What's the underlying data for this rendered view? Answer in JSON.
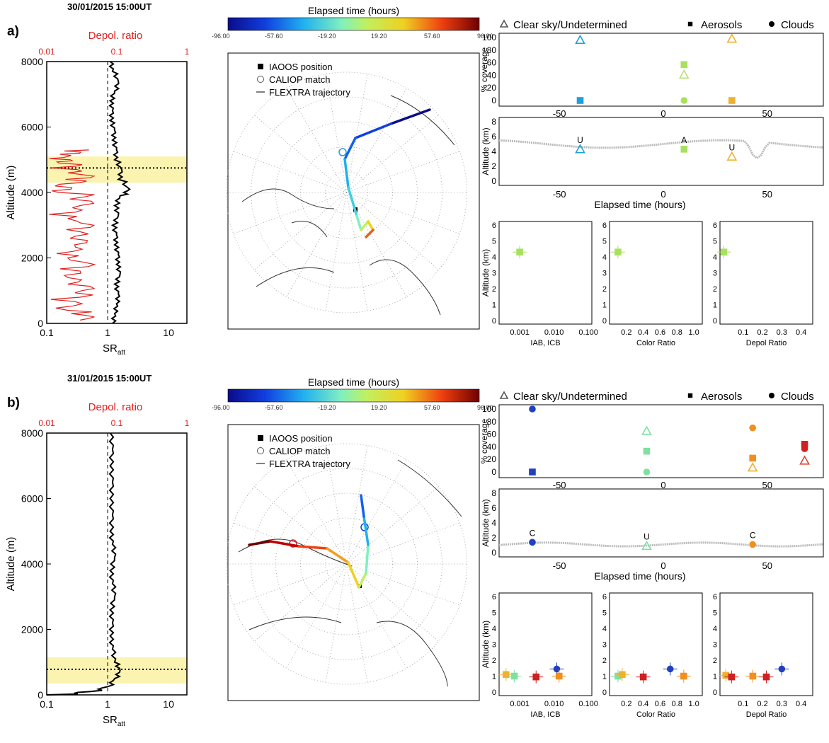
{
  "colorbar": {
    "title": "Elapsed time (hours)",
    "ticks": [
      "-96.00",
      "-57.60",
      "-19.20",
      "19.20",
      "57.60",
      "96.00"
    ]
  },
  "legends": {
    "map": [
      "IAOOS position",
      "CALIOP match",
      "FLEXTRA trajectory"
    ],
    "coverage": [
      "Clear sky/Undetermined",
      "Aerosols",
      "Clouds"
    ]
  },
  "labels": {
    "depol_axis": "Depol. ratio",
    "depol_ticks": [
      "0.01",
      "0.1",
      "1"
    ],
    "sr_ticks": [
      "0.1",
      "1",
      "10"
    ],
    "sr_label_main": "SR",
    "sr_label_sub": "att",
    "altitude_m": "Altitude (m)",
    "alt_ticks": [
      "0",
      "2000",
      "4000",
      "6000",
      "8000"
    ],
    "coverage_y": "% coverage",
    "cov_ticks": [
      "0",
      "20",
      "40",
      "60",
      "80",
      "100"
    ],
    "alt_km": "Altitude (km)",
    "alt_km_ticks": [
      "0",
      "2",
      "4",
      "6",
      "8"
    ],
    "alt_km_ticks_small": [
      "0",
      "1",
      "2",
      "3",
      "4",
      "5",
      "6"
    ],
    "elapsed_ticks": [
      "-50",
      "0",
      "50"
    ],
    "elapsed_label": "Elapsed time (hours)",
    "iab_label": "IAB, ICB",
    "iab_ticks": [
      "0.001",
      "0.010",
      "0.100"
    ],
    "cr_label": "Color Ratio",
    "cr_ticks": [
      "0.2",
      "0.4",
      "0.6",
      "0.8",
      "1.0"
    ],
    "dr_label": "Depol Ratio",
    "dr_ticks": [
      "0.1",
      "0.2",
      "0.3",
      "0.4"
    ]
  },
  "chart_data": [
    {
      "panel": "a)",
      "type": "line",
      "title": "30/01/2015 15:00UT",
      "profile_sr": [
        [
          1.2,
          0
        ],
        [
          1.3,
          300
        ],
        [
          1.4,
          600
        ],
        [
          1.5,
          900
        ],
        [
          1.3,
          1200
        ],
        [
          1.6,
          1500
        ],
        [
          1.4,
          1800
        ],
        [
          1.5,
          2100
        ],
        [
          1.3,
          2400
        ],
        [
          1.4,
          2700
        ],
        [
          1.2,
          3000
        ],
        [
          1.5,
          3300
        ],
        [
          1.3,
          3600
        ],
        [
          1.6,
          3900
        ],
        [
          2.3,
          4100
        ],
        [
          1.5,
          4400
        ],
        [
          1.7,
          4700
        ],
        [
          1.3,
          5000
        ],
        [
          1.4,
          5300
        ],
        [
          1.2,
          5600
        ],
        [
          1.3,
          5900
        ],
        [
          1.1,
          6200
        ],
        [
          1.2,
          6500
        ],
        [
          1.1,
          6800
        ],
        [
          1.3,
          7100
        ],
        [
          1.5,
          7400
        ],
        [
          1.2,
          7700
        ],
        [
          1.1,
          8000
        ]
      ],
      "profile_depol": [
        [
          0.03,
          100
        ],
        [
          0.02,
          400
        ],
        [
          0.03,
          800
        ],
        [
          0.02,
          1200
        ],
        [
          0.03,
          1600
        ],
        [
          0.02,
          2000
        ],
        [
          0.025,
          2400
        ],
        [
          0.03,
          2800
        ],
        [
          0.02,
          3200
        ],
        [
          0.03,
          3600
        ],
        [
          0.015,
          4000
        ],
        [
          0.03,
          4300
        ],
        [
          0.02,
          4600
        ],
        [
          0.015,
          4900
        ],
        [
          0.02,
          5100
        ],
        [
          0.04,
          5300
        ]
      ],
      "layer": {
        "bottom": 4300,
        "top": 5100,
        "peak": 4750
      },
      "trajectory_colors": "blue to orange",
      "coverage": {
        "clear": [
          {
            "t": -40,
            "v": 96,
            "c": "#1fa0dc"
          },
          {
            "t": 10,
            "v": 41,
            "c": "#b9e070"
          },
          {
            "t": 33,
            "v": 98,
            "c": "#f0b030"
          }
        ],
        "aerosol": [
          {
            "t": -40,
            "v": 0,
            "c": "#1fa0dc"
          },
          {
            "t": 10,
            "v": 57,
            "c": "#a8e060"
          },
          {
            "t": 33,
            "v": 0,
            "c": "#f0b030"
          }
        ],
        "cloud": [
          {
            "t": 10,
            "v": 0,
            "c": "#a8e060"
          }
        ]
      },
      "track": [
        {
          "t": -40,
          "alt": 4.3,
          "lab": "U",
          "sym": "tri",
          "c": "#1fa0dc"
        },
        {
          "t": 10,
          "alt": 4.3,
          "lab": "A",
          "sym": "sq",
          "c": "#a8e060"
        },
        {
          "t": 33,
          "alt": 3.3,
          "lab": "U",
          "sym": "tri",
          "c": "#f0b030"
        }
      ],
      "profiles_small": {
        "iab": [
          {
            "x": 0.001,
            "y": 4.3,
            "c": "#a8e060"
          }
        ],
        "cr": [
          {
            "x": 0.1,
            "y": 4.3,
            "c": "#a8e060"
          }
        ],
        "dr": [
          {
            "x": 0.0,
            "y": 4.3,
            "c": "#a8e060"
          }
        ]
      }
    },
    {
      "panel": "b)",
      "type": "line",
      "title": "31/01/2015 15:00UT",
      "profile_sr": [
        [
          0.1,
          0
        ],
        [
          0.5,
          100
        ],
        [
          1.0,
          250
        ],
        [
          1.3,
          500
        ],
        [
          1.6,
          750
        ],
        [
          1.3,
          1000
        ],
        [
          1.2,
          1400
        ],
        [
          1.1,
          1800
        ],
        [
          1.2,
          2200
        ],
        [
          1.1,
          2600
        ],
        [
          1.3,
          3000
        ],
        [
          1.2,
          3400
        ],
        [
          1.1,
          3800
        ],
        [
          1.3,
          4200
        ],
        [
          1.2,
          4600
        ],
        [
          1.1,
          5000
        ],
        [
          1.2,
          5500
        ],
        [
          1.1,
          6000
        ],
        [
          1.2,
          6500
        ],
        [
          1.1,
          7000
        ],
        [
          1.2,
          7500
        ],
        [
          1.1,
          8000
        ]
      ],
      "profile_depol": [],
      "layer": {
        "bottom": 350,
        "top": 1150,
        "peak": 780
      },
      "trajectory_colors": "blue to red",
      "coverage": {
        "clear": [
          {
            "t": -8,
            "v": 65,
            "c": "#7fe0a0"
          },
          {
            "t": 43,
            "v": 7,
            "c": "#f0b030"
          },
          {
            "t": 68,
            "v": 18,
            "c": "#e04030"
          }
        ],
        "aerosol": [
          {
            "t": -63,
            "v": 0,
            "c": "#2040c0"
          },
          {
            "t": -8,
            "v": 33,
            "c": "#7fe0a0"
          },
          {
            "t": 43,
            "v": 22,
            "c": "#f09020"
          },
          {
            "t": 68,
            "v": 44,
            "c": "#d02020"
          }
        ],
        "cloud": [
          {
            "t": -63,
            "v": 100,
            "c": "#2040c0"
          },
          {
            "t": -8,
            "v": 0,
            "c": "#7fe0a0"
          },
          {
            "t": 43,
            "v": 70,
            "c": "#f09020"
          },
          {
            "t": 68,
            "v": 37,
            "c": "#d02020"
          }
        ]
      },
      "track": [
        {
          "t": -63,
          "alt": 1.4,
          "lab": "C",
          "sym": "ci",
          "c": "#2040c0"
        },
        {
          "t": -8,
          "alt": 0.9,
          "lab": "U",
          "sym": "tri",
          "c": "#7fe0a0"
        },
        {
          "t": 43,
          "alt": 1.1,
          "lab": "C",
          "sym": "ci",
          "c": "#f09020"
        }
      ],
      "profiles_small": {
        "iab": [
          {
            "x": 0.0004,
            "y": 1.1,
            "c": "#f0b030"
          },
          {
            "x": 0.0007,
            "y": 1.0,
            "c": "#7fe0a0"
          },
          {
            "x": 0.003,
            "y": 0.95,
            "c": "#d02020"
          },
          {
            "x": 0.012,
            "y": 1.45,
            "c": "#2040c0"
          },
          {
            "x": 0.014,
            "y": 1.0,
            "c": "#f09020"
          }
        ],
        "cr": [
          {
            "x": 0.1,
            "y": 1.0,
            "c": "#7fe0a0"
          },
          {
            "x": 0.15,
            "y": 1.1,
            "c": "#f0b030"
          },
          {
            "x": 0.4,
            "y": 0.95,
            "c": "#d02020"
          },
          {
            "x": 0.72,
            "y": 1.45,
            "c": "#2040c0"
          },
          {
            "x": 0.88,
            "y": 1.0,
            "c": "#f09020"
          }
        ],
        "dr": [
          {
            "x": 0.01,
            "y": 1.05,
            "c": "#f0b030"
          },
          {
            "x": 0.04,
            "y": 0.95,
            "c": "#d02020"
          },
          {
            "x": 0.15,
            "y": 1.0,
            "c": "#f09020"
          },
          {
            "x": 0.22,
            "y": 0.95,
            "c": "#d02020"
          },
          {
            "x": 0.3,
            "y": 1.45,
            "c": "#2040c0"
          }
        ]
      }
    }
  ]
}
